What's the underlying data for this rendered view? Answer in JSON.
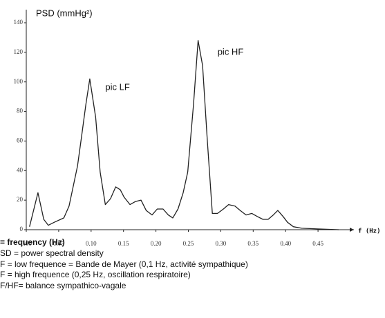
{
  "chart_data": {
    "type": "line",
    "y_label": "PSD (mmHg²)",
    "x_label": "f (Hz)",
    "annotations": [
      {
        "text": "pic LF",
        "x": 0.122,
        "y": 96
      },
      {
        "text": "pic HF",
        "x": 0.295,
        "y": 120
      }
    ],
    "xlim": [
      0,
      0.5
    ],
    "ylim": [
      0,
      140
    ],
    "xticks": [
      {
        "value": 0,
        "label": "0.00"
      },
      {
        "value": 0.05,
        "label": "0.05"
      },
      {
        "value": 0.1,
        "label": "0.10"
      },
      {
        "value": 0.15,
        "label": "0.15"
      },
      {
        "value": 0.2,
        "label": "0.20"
      },
      {
        "value": 0.25,
        "label": "0.25"
      },
      {
        "value": 0.3,
        "label": "0.30"
      },
      {
        "value": 0.35,
        "label": "0.35"
      },
      {
        "value": 0.4,
        "label": "0.40"
      },
      {
        "value": 0.45,
        "label": "0.45"
      }
    ],
    "yticks": [
      0,
      20,
      40,
      60,
      80,
      100,
      120,
      140
    ],
    "color": "#222222",
    "x": [
      0.005,
      0.018,
      0.027,
      0.034,
      0.043,
      0.058,
      0.066,
      0.079,
      0.085,
      0.092,
      0.098,
      0.107,
      0.114,
      0.122,
      0.13,
      0.138,
      0.145,
      0.151,
      0.16,
      0.168,
      0.177,
      0.185,
      0.194,
      0.202,
      0.211,
      0.219,
      0.226,
      0.234,
      0.242,
      0.249,
      0.258,
      0.265,
      0.272,
      0.279,
      0.287,
      0.295,
      0.304,
      0.312,
      0.322,
      0.33,
      0.339,
      0.348,
      0.356,
      0.365,
      0.373,
      0.381,
      0.388,
      0.396,
      0.403,
      0.412,
      0.425,
      0.45,
      0.482
    ],
    "values": [
      2,
      25,
      7,
      3,
      5,
      8,
      16,
      43,
      62,
      85,
      102,
      76,
      39,
      17,
      21,
      29,
      27,
      22,
      17,
      19,
      20,
      13,
      10,
      14,
      14,
      10,
      8,
      14,
      25,
      39,
      85,
      128,
      111,
      62,
      11,
      11,
      14,
      17,
      16,
      13,
      10,
      11,
      9,
      7,
      7,
      10,
      13,
      9,
      5,
      2,
      1,
      0.5,
      0
    ]
  },
  "notes": [
    "= frequency (Hz)",
    "SD = power spectral density",
    "F = low frequence = Bande de Mayer (0,1 Hz, activité sympathique)",
    "F = high frequence (0,25 Hz, oscillation respiratoire)",
    "F/HF= balance sympathico-vagale"
  ]
}
